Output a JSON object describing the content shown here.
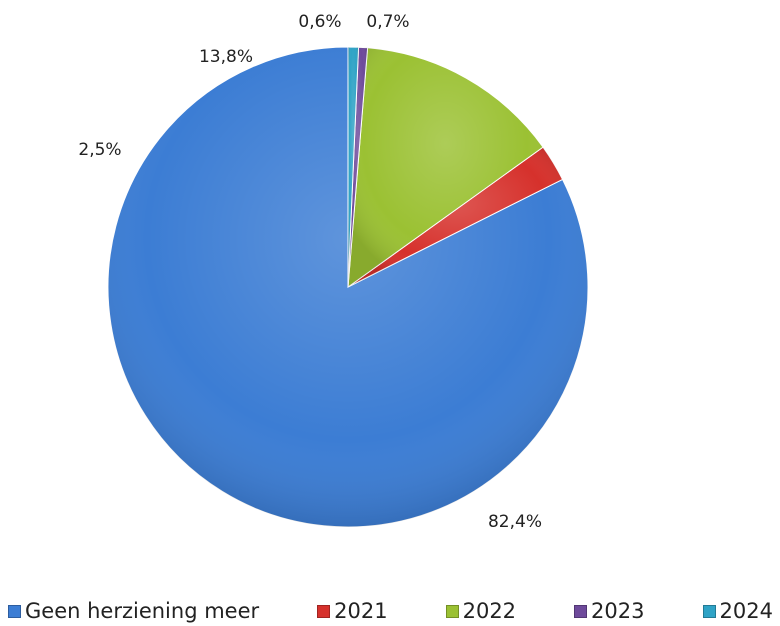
{
  "chart_data": {
    "type": "pie",
    "categories": [
      "Geen herziening meer",
      "2021",
      "2022",
      "2023",
      "2024"
    ],
    "values": [
      82.4,
      2.5,
      13.8,
      0.6,
      0.7
    ],
    "labels": [
      "82,4%",
      "2,5%",
      "13,8%",
      "0,6%",
      "0,7%"
    ],
    "colors": [
      "#3c7dd4",
      "#d6312c",
      "#9bc133",
      "#6e4a9b",
      "#2fa3c6"
    ],
    "legend_position": "bottom",
    "start": "top",
    "direction": "counterclockwise"
  }
}
